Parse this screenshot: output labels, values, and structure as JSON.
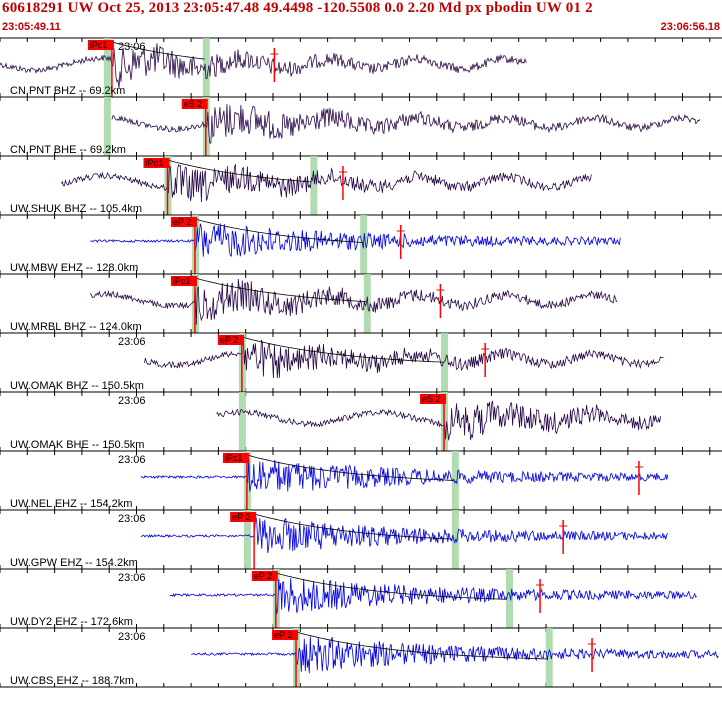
{
  "header": {
    "title": "60618291 UW Oct 25, 2013 23:05:47.48    49.4498 -120.5508  0.0 2.20 Md px pbodin UW 01    2",
    "start_time": "23:05:49.11",
    "end_time": "23:06:56.18"
  },
  "colors": {
    "header_text": "#c00000",
    "pick_box": "#ff0000",
    "pick_shadow": "#a8d8a8",
    "trace_broadband": "#2a0a4a",
    "trace_short_period": "#0000e0",
    "coda_curve": "#000000",
    "grid": "#000000"
  },
  "traces": [
    {
      "label": "CN.PNT BHZ -- 69.2km",
      "time": "23:06",
      "pick": "iPc1",
      "color": "broadband",
      "start": 0.0,
      "end": 0.73,
      "onset": 0.155,
      "green": [
        0.148,
        0.285
      ],
      "end_pick": 0.38
    },
    {
      "label": "CN.PNT BHE -- 69.2km",
      "time": "",
      "pick": "eS 2",
      "color": "broadband",
      "start": 0.155,
      "end": 0.97,
      "onset": 0.285,
      "green": [
        0.148,
        0.285
      ],
      "end_pick": null
    },
    {
      "label": "UW.SHUK BHZ -- 105.4km",
      "time": "",
      "pick": "iPd1",
      "color": "broadband",
      "start": 0.085,
      "end": 0.82,
      "onset": 0.232,
      "green": [
        0.232,
        0.434
      ],
      "end_pick": 0.475
    },
    {
      "label": "UW.MBW EHZ -- 128.0km",
      "time": "",
      "pick": "eP 2",
      "color": "short_period",
      "start": 0.125,
      "end": 0.86,
      "onset": 0.27,
      "green": [
        0.27,
        0.503
      ],
      "end_pick": 0.555
    },
    {
      "label": "UW.MRBL BHZ -- 124.0km",
      "time": "",
      "pick": "iPc1",
      "color": "broadband",
      "start": 0.125,
      "end": 0.855,
      "onset": 0.27,
      "green": [
        0.27,
        0.508
      ],
      "end_pick": 0.61
    },
    {
      "label": "UW.OMAK BHZ -- 150.5km",
      "time": "23:06",
      "pick": "eP 2",
      "color": "broadband",
      "start": 0.2,
      "end": 0.92,
      "onset": 0.335,
      "green": [
        0.335,
        0.615
      ],
      "end_pick": 0.672
    },
    {
      "label": "UW.OMAK BHE -- 150.5km",
      "time": "23:06",
      "pick": "eS 2",
      "color": "broadband",
      "start": 0.3,
      "end": 0.915,
      "onset": 0.615,
      "green": [
        0.335,
        0.615
      ],
      "end_pick": null
    },
    {
      "label": "UW.NEL EHZ -- 154.2km",
      "time": "23:06",
      "pick": "iPc1",
      "color": "short_period",
      "start": 0.195,
      "end": 0.925,
      "onset": 0.342,
      "green": [
        0.342,
        0.63
      ],
      "end_pick": 0.885
    },
    {
      "label": "UW.GPW EHZ -- 154.2km",
      "time": "23:06",
      "pick": "eP 2",
      "color": "short_period",
      "start": 0.195,
      "end": 0.925,
      "onset": 0.352,
      "green": [
        0.342,
        0.63
      ],
      "end_pick": 0.78
    },
    {
      "label": "UW.DY2 EHZ -- 172.6km",
      "time": "23:06",
      "pick": "eP 2",
      "color": "short_period",
      "start": 0.235,
      "end": 0.965,
      "onset": 0.382,
      "green": [
        0.382,
        0.705
      ],
      "end_pick": 0.748
    },
    {
      "label": "UW.CBS EHZ -- 188.7km",
      "time": "23:06",
      "pick": "eP 2",
      "color": "short_period",
      "start": 0.265,
      "end": 0.995,
      "onset": 0.41,
      "green": [
        0.41,
        0.76
      ],
      "end_pick": 0.82
    }
  ]
}
